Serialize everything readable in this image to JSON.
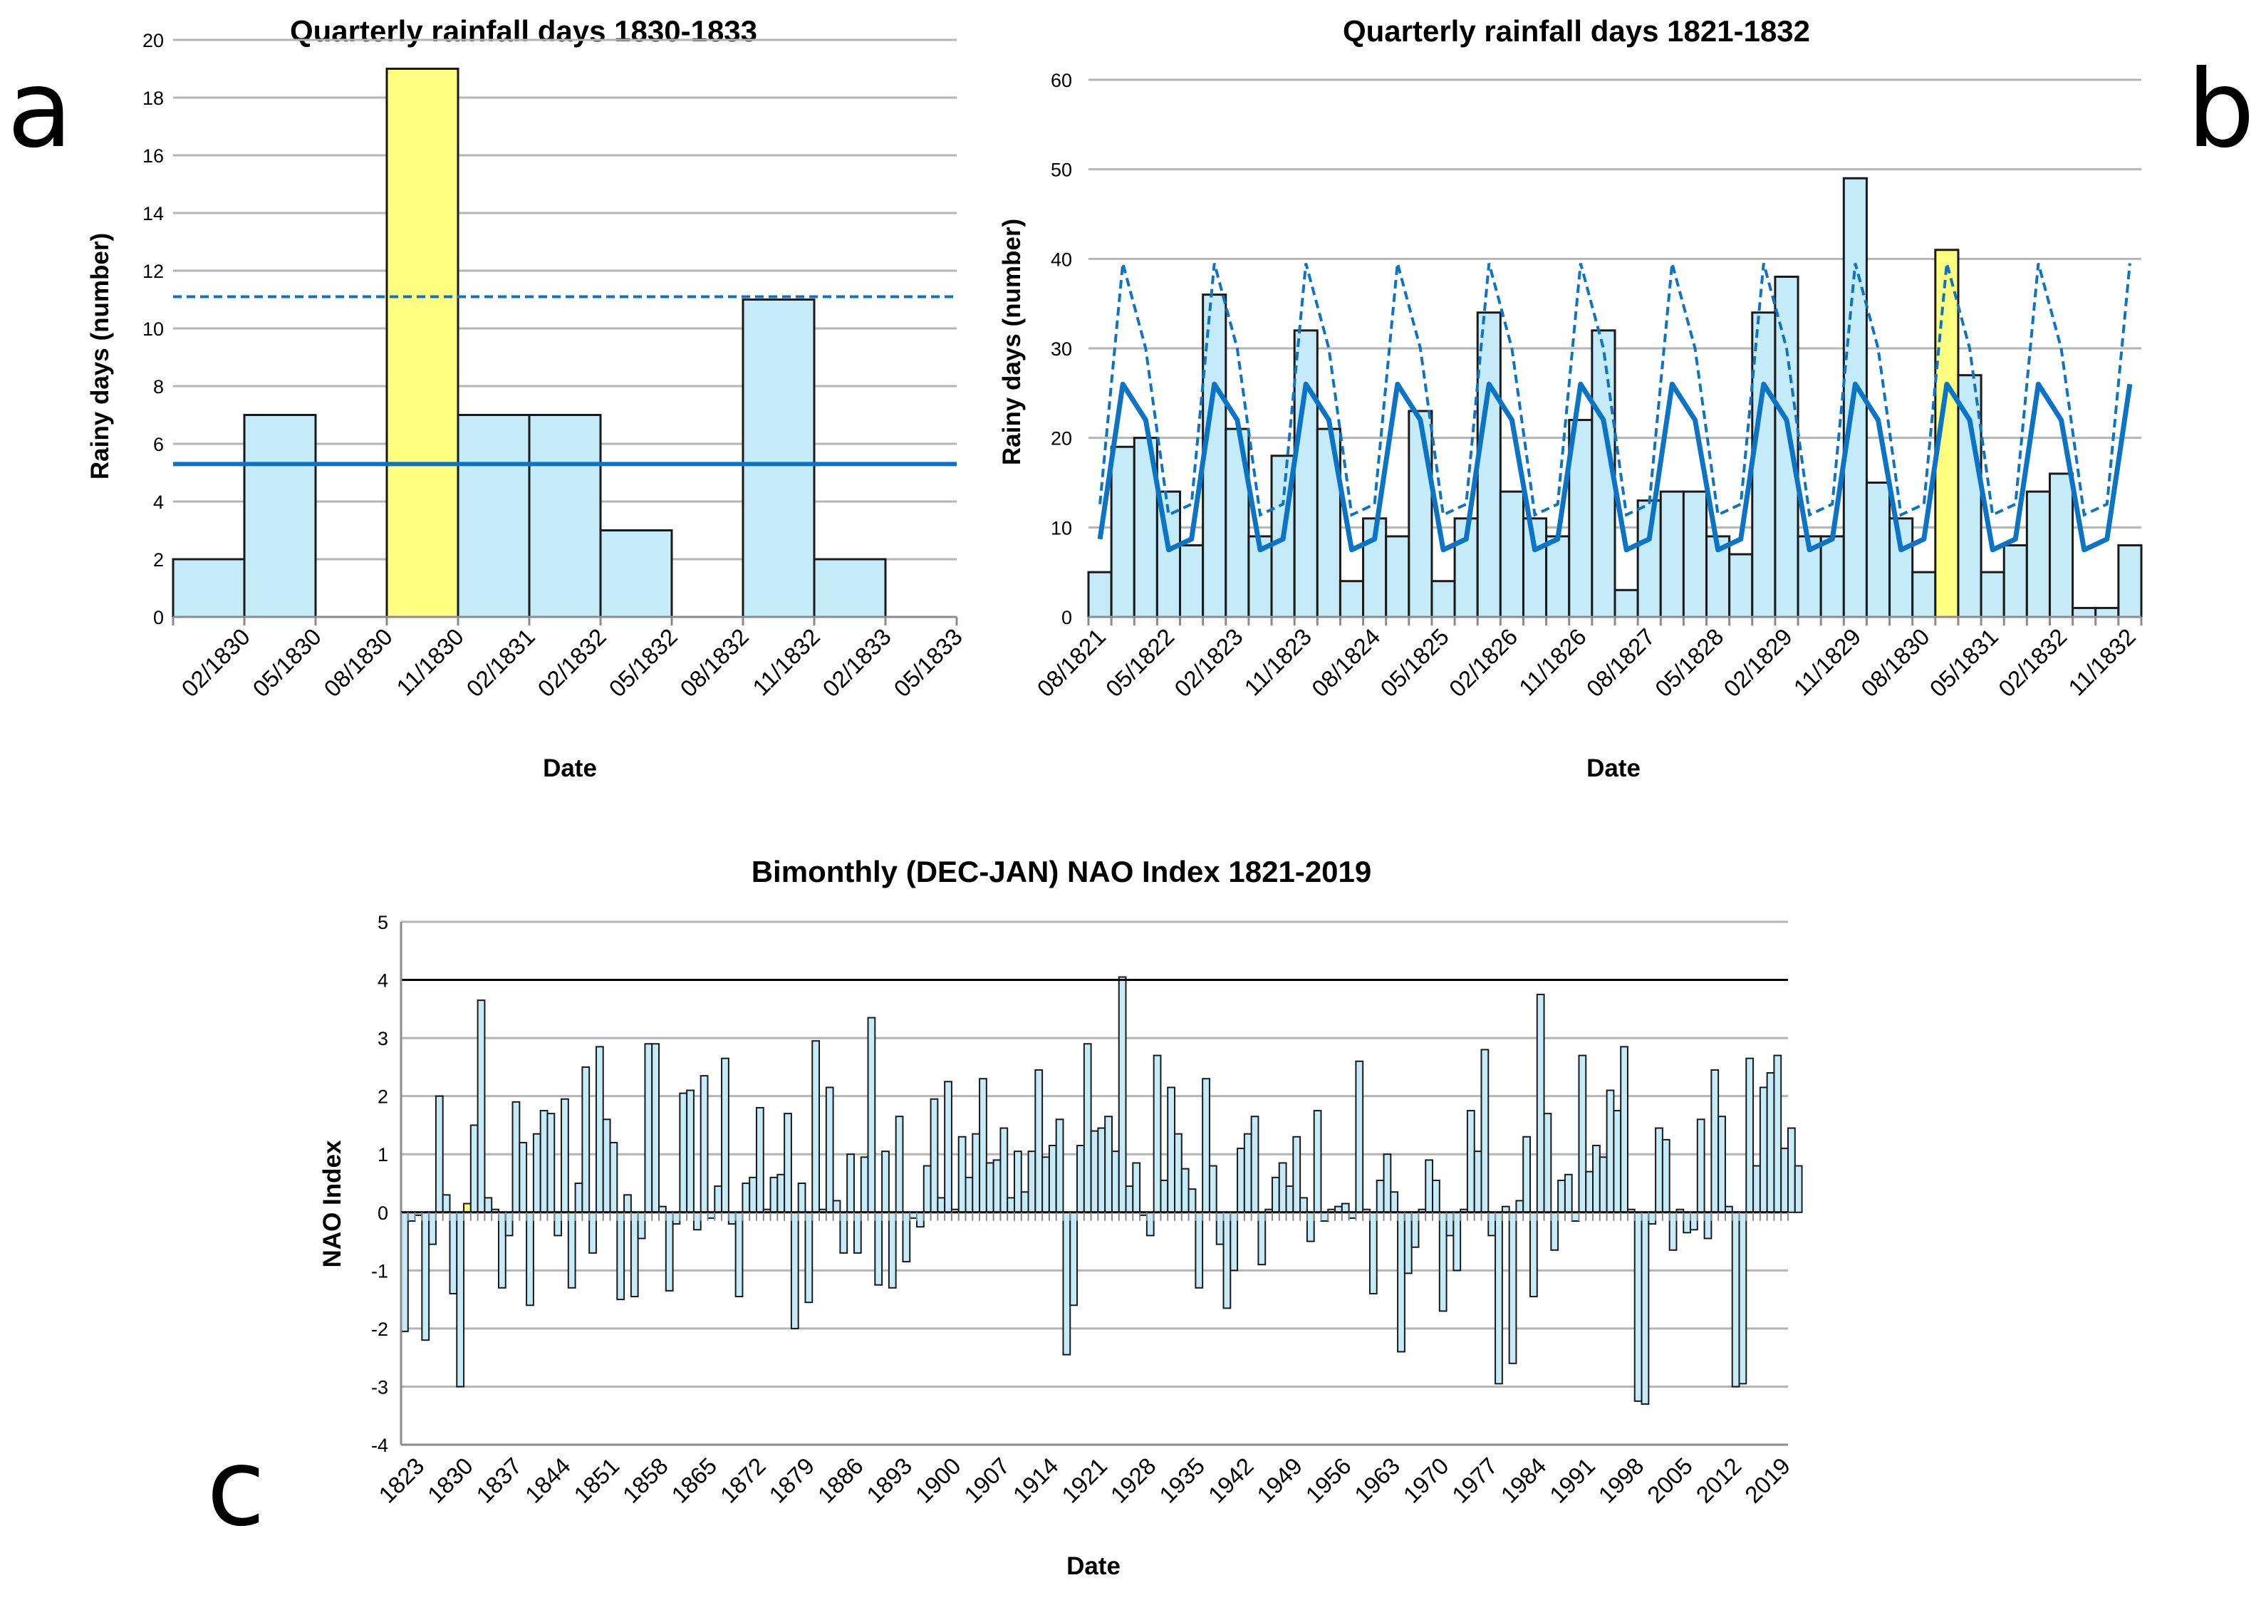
{
  "chart_data": [
    {
      "type": "bar",
      "panel": "a",
      "title": "Quarterly rainfall days 1830-1833",
      "xlabel": "Date",
      "ylabel": "Rainy days (number)",
      "ylim": [
        0,
        20
      ],
      "yticks": [
        "0",
        "2",
        "4",
        "6",
        "8",
        "10",
        "12",
        "14",
        "16",
        "18",
        "20"
      ],
      "xtick_labels": [
        "02/1830",
        "05/1830",
        "08/1830",
        "11/1830",
        "02/1831",
        "02/1832",
        "05/1832",
        "08/1832",
        "11/1832",
        "02/1833",
        "05/1833"
      ],
      "values": [
        2,
        7,
        0,
        19,
        7,
        7,
        3,
        0,
        11,
        2,
        0
      ],
      "highlight_index": 3,
      "mean_line": 5.3,
      "threshold_line": 11.1,
      "bar_color": "#c6ebf8",
      "highlight_color": "#ffff80",
      "line_color": "#0c74c4"
    },
    {
      "type": "bar",
      "panel": "b",
      "title": "Quarterly rainfall days 1821-1832",
      "xlabel": "Date",
      "ylabel": "Rainy days (number)",
      "ylim": [
        0,
        60
      ],
      "yticks": [
        "0",
        "10",
        "20",
        "30",
        "40",
        "50",
        "60"
      ],
      "xtick_labels": [
        "08/1821",
        "05/1822",
        "02/1823",
        "11/1823",
        "08/1824",
        "05/1825",
        "02/1826",
        "11/1826",
        "08/1827",
        "05/1828",
        "02/1829",
        "11/1829",
        "08/1830",
        "05/1831",
        "02/1832",
        "11/1832"
      ],
      "values": [
        5,
        19,
        20,
        14,
        8,
        36,
        21,
        9,
        18,
        32,
        21,
        4,
        11,
        9,
        23,
        4,
        11,
        34,
        14,
        11,
        9,
        22,
        32,
        3,
        13,
        14,
        14,
        9,
        7,
        34,
        38,
        9,
        9,
        49,
        15,
        11,
        5,
        41,
        27,
        5,
        8,
        14,
        16,
        1,
        1,
        8
      ],
      "highlight_index": 37,
      "seasonal_mean": [
        8.7,
        26,
        22,
        7.5,
        8.7,
        26,
        22,
        7.5,
        8.7,
        26,
        22,
        7.5,
        8.7,
        26,
        22,
        7.5,
        8.7,
        26,
        22,
        7.5,
        8.7,
        26,
        22,
        7.5,
        8.7,
        26,
        22,
        7.5,
        8.7,
        26,
        22,
        7.5,
        8.7,
        26,
        22,
        7.5,
        8.7,
        26,
        22,
        7.5,
        8.7,
        26,
        22,
        7.5,
        8.7,
        26
      ],
      "seasonal_threshold": [
        12.6,
        39.5,
        30,
        11.4,
        12.6,
        39.5,
        30,
        11.4,
        12.6,
        39.5,
        30,
        11.4,
        12.6,
        39.5,
        30,
        11.4,
        12.6,
        39.5,
        30,
        11.4,
        12.6,
        39.5,
        30,
        11.4,
        12.6,
        39.5,
        30,
        11.4,
        12.6,
        39.5,
        30,
        11.4,
        12.6,
        39.5,
        30,
        11.4,
        12.6,
        39.5,
        30,
        11.4,
        12.6,
        39.5,
        30,
        11.4,
        12.6,
        39.5
      ],
      "bar_color": "#c6ebf8",
      "highlight_color": "#ffff80",
      "line_color": "#0c74c4"
    },
    {
      "type": "bar",
      "panel": "c",
      "title": "Bimonthly (DEC-JAN) NAO Index 1821-2019",
      "xlabel": "Date",
      "ylabel": "NAO Index",
      "ylim": [
        -4,
        5
      ],
      "yticks": [
        "-4",
        "-3",
        "-2",
        "-1",
        "0",
        "1",
        "2",
        "3",
        "4",
        "5"
      ],
      "xtick_labels": [
        "1823",
        "1830",
        "1837",
        "1844",
        "1851",
        "1858",
        "1865",
        "1872",
        "1879",
        "1886",
        "1893",
        "1900",
        "1907",
        "1914",
        "1921",
        "1928",
        "1935",
        "1942",
        "1949",
        "1956",
        "1963",
        "1970",
        "1977",
        "1984",
        "1991",
        "1998",
        "2005",
        "2012",
        "2019"
      ],
      "x_start": 1821,
      "highlight_index": 9,
      "reference_line": 4,
      "values": [
        -2.05,
        -0.15,
        -0.05,
        -2.2,
        -0.55,
        2.0,
        0.3,
        -1.4,
        -3.0,
        0.15,
        1.5,
        3.65,
        0.25,
        0.05,
        -1.3,
        -0.4,
        1.9,
        1.2,
        -1.6,
        1.35,
        1.75,
        1.7,
        -0.4,
        1.95,
        -1.3,
        0.5,
        2.5,
        -0.7,
        2.85,
        1.6,
        1.2,
        -1.5,
        0.3,
        -1.45,
        -0.45,
        2.9,
        2.9,
        0.1,
        -1.35,
        -0.2,
        2.05,
        2.1,
        -0.3,
        2.35,
        -0.1,
        0.45,
        2.65,
        -0.2,
        -1.45,
        0.5,
        0.6,
        1.8,
        0.05,
        0.6,
        0.65,
        1.7,
        -2.0,
        0.5,
        -1.55,
        2.95,
        0.05,
        2.15,
        0.2,
        -0.7,
        1.0,
        -0.7,
        0.95,
        3.35,
        -1.25,
        1.05,
        -1.3,
        1.65,
        -0.85,
        -0.1,
        -0.25,
        0.8,
        1.95,
        0.25,
        2.25,
        0.05,
        1.3,
        0.6,
        1.35,
        2.3,
        0.85,
        0.9,
        1.45,
        0.25,
        1.05,
        0.35,
        1.05,
        2.45,
        0.95,
        1.15,
        1.6,
        -2.45,
        -1.6,
        1.15,
        2.9,
        1.4,
        1.45,
        1.65,
        1.05,
        4.05,
        0.45,
        0.85,
        -0.05,
        -0.4,
        2.7,
        0.55,
        2.15,
        1.35,
        0.75,
        0.4,
        -1.3,
        2.3,
        0.8,
        -0.55,
        -1.65,
        -1.0,
        1.1,
        1.35,
        1.65,
        -0.9,
        0.05,
        0.6,
        0.85,
        0.45,
        1.3,
        0.25,
        -0.5,
        1.75,
        -0.15,
        0.05,
        0.1,
        0.15,
        -0.1,
        2.6,
        0.05,
        -1.4,
        0.55,
        1.0,
        0.35,
        -2.4,
        -1.05,
        -0.6,
        0.05,
        0.9,
        0.55,
        -1.7,
        -0.4,
        -1.0,
        0.05,
        1.75,
        1.05,
        2.8,
        -0.4,
        -2.95,
        0.1,
        -2.6,
        0.2,
        1.3,
        -1.45,
        3.75,
        1.7,
        -0.65,
        0.55,
        0.65,
        -0.15,
        2.7,
        0.7,
        1.15,
        0.95,
        2.1,
        1.75,
        2.85,
        0.05,
        -3.25,
        -3.3,
        -0.2,
        1.45,
        1.25,
        -0.65,
        0.05,
        -0.35,
        -0.3,
        1.6,
        -0.45,
        2.45,
        1.65,
        0.1,
        -3.0,
        -2.95,
        2.65,
        0.8,
        2.15,
        2.4,
        2.7,
        1.1,
        1.45,
        0.8
      ],
      "bar_color": "#c6ebf8",
      "highlight_color": "#ffff80"
    }
  ],
  "panel_labels": {
    "a": "a",
    "b": "b",
    "c": "c"
  }
}
